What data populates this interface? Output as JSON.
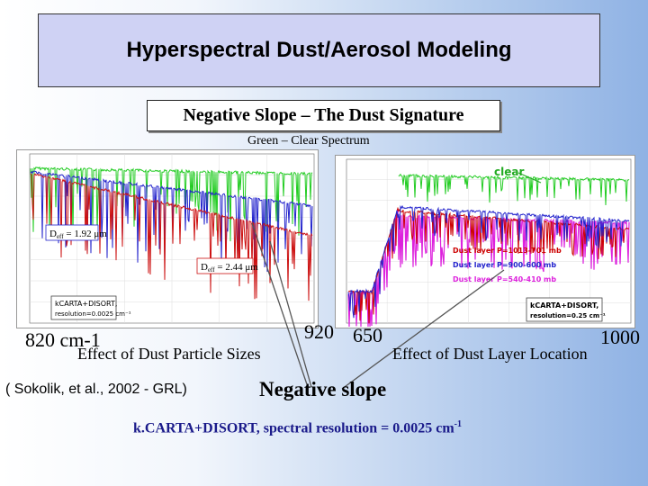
{
  "title": "Hyperspectral Dust/Aerosol Modeling",
  "subtitle": "Negative Slope – The Dust Signature",
  "caption_top": "Green – Clear Spectrum",
  "left_plot": {
    "label_1": "D",
    "label_1_sub": "eff",
    "label_1_val": " = 1.92 μm",
    "label_2": "D",
    "label_2_sub": "eff",
    "label_2_val": " = 2.44 μm",
    "legend_line1": "kCARTA+DISORT,",
    "legend_line2": "resolution=0.0025 cm⁻¹"
  },
  "right_plot": {
    "clear_label": "clear",
    "series": [
      {
        "name": "Dust layer P=1013-701 mb",
        "color": "#cc0000"
      },
      {
        "name": "Dust layer P=900-600 mb",
        "color": "#2222cc"
      },
      {
        "name": "Dust layer P=540-410 mb",
        "color": "#dd22dd"
      }
    ],
    "legend_line1": "kCARTA+DISORT,",
    "legend_line2": "resolution=0.25 cm⁻¹"
  },
  "axis_labels": {
    "left_start": "820 cm-1",
    "left_end": "920",
    "right_start": "650",
    "right_end": "1000"
  },
  "effect_left": "Effect of Dust Particle Sizes",
  "effect_right": "Effect of Dust Layer Location",
  "reference": "( Sokolik, et al., 2002 - GRL)",
  "negative_slope": "Negative slope",
  "kcarta_note": "k.CARTA+DISORT, spectral resolution = 0.0025 cm",
  "kcarta_note_sup": "-1",
  "colors": {
    "clear": "#22cc22",
    "small_particle": "#2222cc",
    "large_particle": "#cc1111",
    "magenta": "#dd22dd",
    "title_bg": "#cfd2f4"
  }
}
